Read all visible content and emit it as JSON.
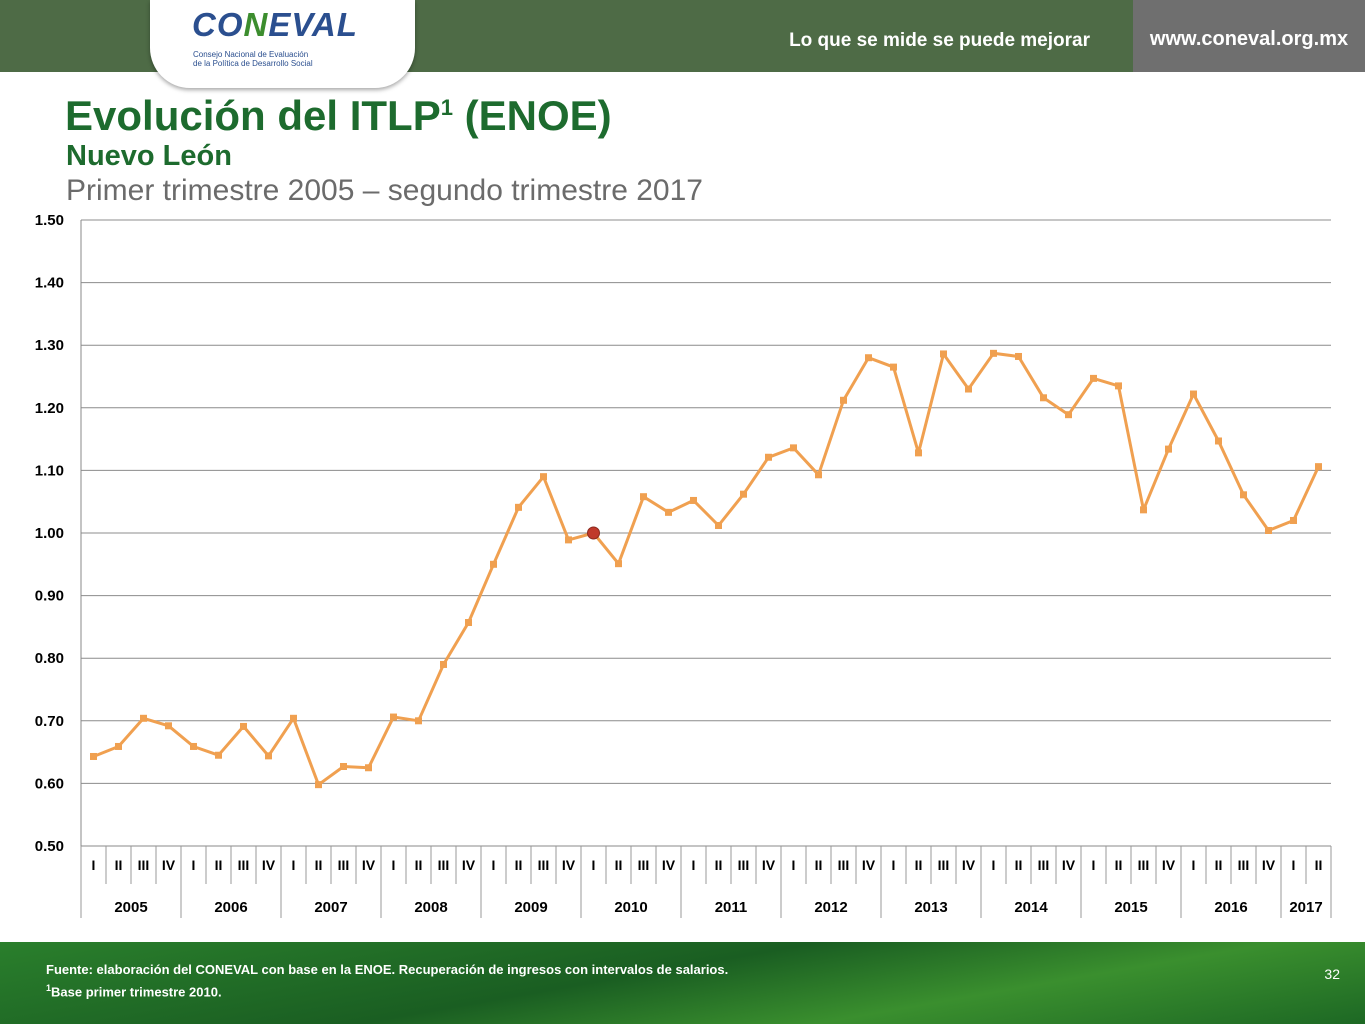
{
  "header": {
    "logo_text_1": "CO",
    "logo_text_2": "N",
    "logo_text_3": "EVAL",
    "logo_subtitle_line1": "Consejo Nacional de Evaluación",
    "logo_subtitle_line2": "de la Política de Desarrollo Social",
    "tagline": "Lo que se mide se puede mejorar",
    "website": "www.coneval.org.mx"
  },
  "slide": {
    "title": "Evolución del ITLP",
    "title_sup": "1",
    "title_suffix": " (ENOE)",
    "subtitle": "Nuevo León",
    "period": "Primer trimestre 2005 – segundo trimestre 2017"
  },
  "footer": {
    "source": "Fuente: elaboración del CONEVAL con base en la ENOE. Recuperación de ingresos con intervalos de salarios.",
    "note_sup": "1",
    "note": "Base primer trimestre 2010.",
    "page_number": "32"
  },
  "colors": {
    "line": "#f0a050",
    "base_point": "#c0392b",
    "title_green": "#1d6b2e",
    "header_green": "#4e6b46"
  },
  "chart_data": {
    "type": "line",
    "title": "Evolución del ITLP (ENOE) - Nuevo León",
    "ylim": [
      0.5,
      1.5
    ],
    "y_ticks": [
      "0.50",
      "0.60",
      "0.70",
      "0.80",
      "0.90",
      "1.00",
      "1.10",
      "1.20",
      "1.30",
      "1.40",
      "1.50"
    ],
    "grid": true,
    "quarters": [
      "I",
      "II",
      "III",
      "IV"
    ],
    "years": [
      "2005",
      "2006",
      "2007",
      "2008",
      "2009",
      "2010",
      "2011",
      "2012",
      "2013",
      "2014",
      "2015",
      "2016",
      "2017"
    ],
    "categories": [
      "2005-I",
      "2005-II",
      "2005-III",
      "2005-IV",
      "2006-I",
      "2006-II",
      "2006-III",
      "2006-IV",
      "2007-I",
      "2007-II",
      "2007-III",
      "2007-IV",
      "2008-I",
      "2008-II",
      "2008-III",
      "2008-IV",
      "2009-I",
      "2009-II",
      "2009-III",
      "2009-IV",
      "2010-I",
      "2010-II",
      "2010-III",
      "2010-IV",
      "2011-I",
      "2011-II",
      "2011-III",
      "2011-IV",
      "2012-I",
      "2012-II",
      "2012-III",
      "2012-IV",
      "2013-I",
      "2013-II",
      "2013-III",
      "2013-IV",
      "2014-I",
      "2014-II",
      "2014-III",
      "2014-IV",
      "2015-I",
      "2015-II",
      "2015-III",
      "2015-IV",
      "2016-I",
      "2016-II",
      "2016-III",
      "2016-IV",
      "2017-I",
      "2017-II"
    ],
    "values": [
      0.643,
      0.659,
      0.704,
      0.692,
      0.659,
      0.645,
      0.691,
      0.644,
      0.704,
      0.598,
      0.627,
      0.625,
      0.706,
      0.7,
      0.79,
      0.857,
      0.95,
      1.041,
      1.09,
      0.989,
      1.0,
      0.951,
      1.058,
      1.033,
      1.052,
      1.012,
      1.062,
      1.121,
      1.136,
      1.093,
      1.212,
      1.28,
      1.265,
      1.128,
      1.286,
      1.23,
      1.287,
      1.282,
      1.216,
      1.189,
      1.247,
      1.235,
      1.037,
      1.134,
      1.222,
      1.147,
      1.061,
      1.004,
      1.02,
      1.106
    ],
    "base_index": 20
  }
}
